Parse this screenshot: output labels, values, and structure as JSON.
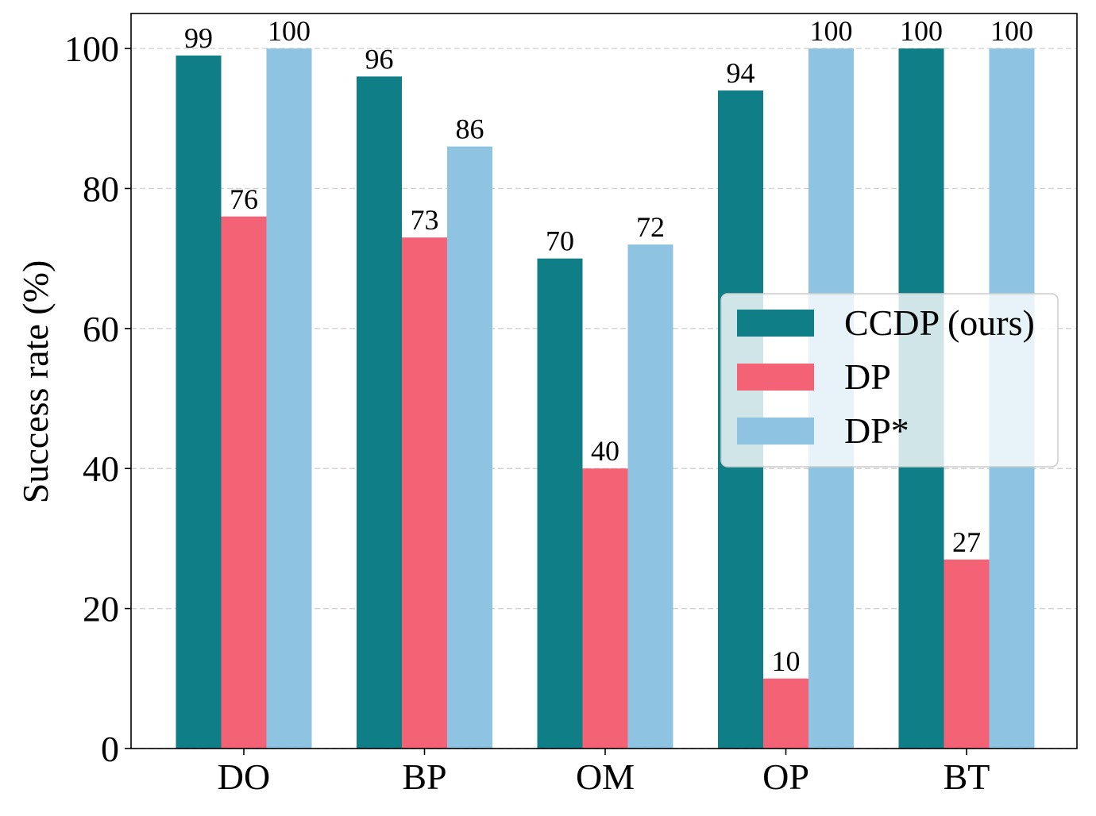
{
  "chart_data": {
    "type": "bar",
    "categories": [
      "DO",
      "BP",
      "OM",
      "OP",
      "BT"
    ],
    "series": [
      {
        "name": "CCDP (ours)",
        "values": [
          99,
          96,
          70,
          94,
          100
        ],
        "color": "#107e87"
      },
      {
        "name": "DP",
        "values": [
          76,
          73,
          40,
          10,
          27
        ],
        "color": "#f46275"
      },
      {
        "name": "DP*",
        "values": [
          100,
          86,
          72,
          100,
          100
        ],
        "color": "#8ec4e2"
      }
    ],
    "ylabel": "Success rate (%)",
    "ylim": [
      0,
      105
    ],
    "yticks": [
      0,
      20,
      40,
      60,
      80,
      100
    ],
    "grid": true,
    "legend": "center-right",
    "data_labels": true
  }
}
